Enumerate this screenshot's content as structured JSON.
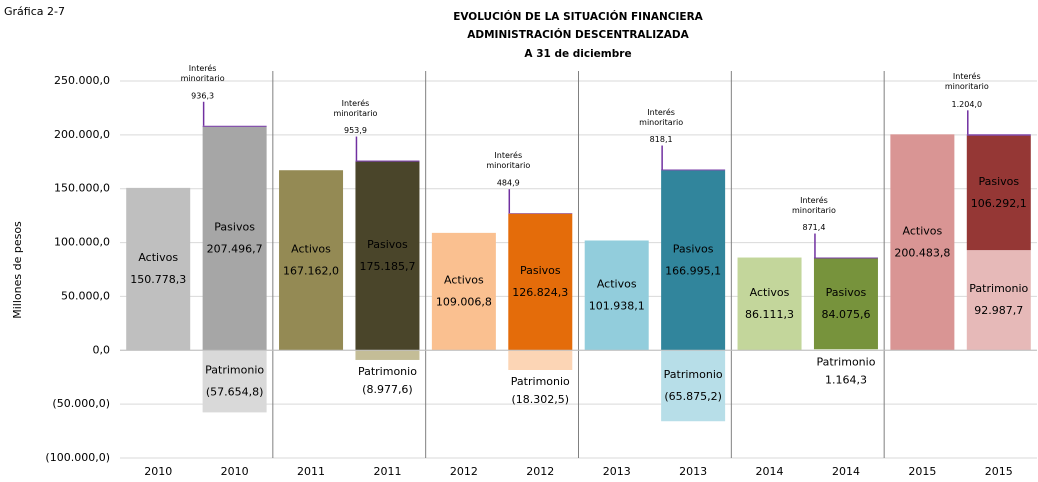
{
  "chart_data": {
    "type": "bar",
    "figure_label": "Gráfica 2-7",
    "title": [
      "EVOLUCIÓN DE LA SITUACIÓN  FINANCIERA",
      "ADMINISTRACIÓN  DESCENTRALIZADA",
      "A 31 de diciembre"
    ],
    "y_label": "Millones de pesos",
    "categories": [
      "2010",
      "2010",
      "2011",
      "2011",
      "2012",
      "2012",
      "2013",
      "2013",
      "2014",
      "2014",
      "2015",
      "2015"
    ],
    "stacked": true,
    "grid": true,
    "ylim": [
      -100000,
      250000
    ],
    "yticks": [
      {
        "value": -100000,
        "label": "(100.000,0)"
      },
      {
        "value": -50000,
        "label": "(50.000,0)"
      },
      {
        "value": 0,
        "label": "0,0"
      },
      {
        "value": 50000,
        "label": "50.000,0"
      },
      {
        "value": 100000,
        "label": "100.000,0"
      },
      {
        "value": 150000,
        "label": "150.000,0"
      },
      {
        "value": 200000,
        "label": "200.000,0"
      },
      {
        "value": 250000,
        "label": "250.000,0"
      }
    ],
    "series": [
      {
        "name": "Activos",
        "colors": [
          "#bfbfbf",
          null,
          "#948a54",
          null,
          "#fac090",
          null,
          "#92cddc",
          null,
          "#c3d69b",
          null,
          "#d99594",
          null
        ],
        "values": [
          150778.3,
          null,
          167162.0,
          null,
          109006.8,
          null,
          101938.1,
          null,
          86111.3,
          null,
          200483.8,
          null
        ],
        "value_labels": [
          "150.778,3",
          null,
          "167.162,0",
          null,
          "109.006,8",
          null,
          "101.938,1",
          null,
          "86.111,3",
          null,
          "200.483,8",
          null
        ]
      },
      {
        "name": "Pasivos",
        "colors": [
          null,
          "#a6a6a6",
          null,
          "#4a452a",
          null,
          "#e46c0a",
          null,
          "#31859c",
          null,
          "#77933c",
          null,
          "#953735"
        ],
        "values": [
          null,
          207496.7,
          null,
          175185.7,
          null,
          126824.3,
          null,
          166995.1,
          null,
          84075.6,
          null,
          106292.1
        ],
        "value_labels": [
          null,
          "207.496,7",
          null,
          "175.185,7",
          null,
          "126.824,3",
          null,
          "166.995,1",
          null,
          "84.075,6",
          null,
          "106.292,1"
        ]
      },
      {
        "name": "Patrimonio",
        "colors": [
          null,
          "#d9d9d9",
          null,
          "#c4bd97",
          null,
          "#fcd5b5",
          null,
          "#b7dee8",
          null,
          "#d7e4bd",
          null,
          "#e6b9b8"
        ],
        "values": [
          null,
          -57654.8,
          null,
          -8977.6,
          null,
          -18302.5,
          null,
          -65875.2,
          null,
          1164.3,
          null,
          92987.7
        ],
        "value_labels": [
          null,
          "(57.654,8)",
          null,
          "(8.977,6)",
          null,
          "(18.302,5)",
          null,
          "(65.875,2)",
          null,
          "1.164,3",
          null,
          "92.987,7"
        ]
      },
      {
        "name": "Interés minoritario",
        "color": "#7030a0",
        "values": [
          null,
          936.3,
          null,
          953.9,
          null,
          484.9,
          null,
          818.1,
          null,
          871.4,
          null,
          1204.0
        ],
        "value_labels": [
          null,
          "936,3",
          null,
          "953,9",
          null,
          "484,9",
          null,
          "818,1",
          null,
          "871,4",
          null,
          "1.204,0"
        ]
      }
    ]
  }
}
